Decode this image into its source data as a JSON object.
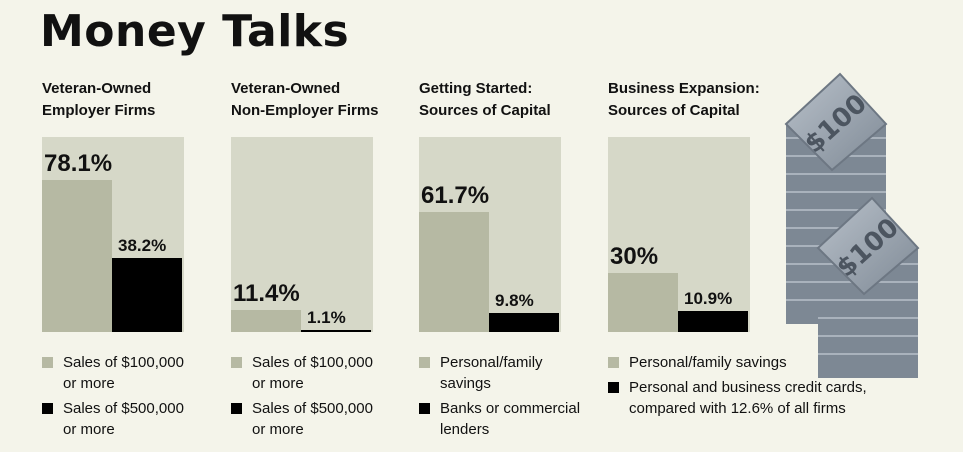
{
  "title": "Money Talks",
  "colors": {
    "background": "#f4f4ea",
    "panel": "#d6d8c8",
    "series_light": "#b6b9a3",
    "series_dark": "#000000",
    "bill": "#8f9aa6"
  },
  "illustration": {
    "icon": "dollar-bills-stack-icon",
    "bill_label": "$100"
  },
  "chart_data": [
    {
      "type": "bar",
      "title_lines": [
        "Veteran-Owned",
        "Employer Firms"
      ],
      "ylim": [
        0,
        100
      ],
      "series": [
        {
          "values": [
            78.1
          ],
          "label": "78.1%",
          "legend_lines": [
            "Sales of $100,000",
            "or more"
          ]
        },
        {
          "values": [
            38.2
          ],
          "label": "38.2%",
          "legend_lines": [
            "Sales of $500,000",
            "or more"
          ]
        }
      ]
    },
    {
      "type": "bar",
      "title_lines": [
        "Veteran-Owned",
        "Non-Employer Firms"
      ],
      "ylim": [
        0,
        100
      ],
      "series": [
        {
          "values": [
            11.4
          ],
          "label": "11.4%",
          "legend_lines": [
            "Sales of $100,000",
            "or more"
          ]
        },
        {
          "values": [
            1.1
          ],
          "label": "1.1%",
          "legend_lines": [
            "Sales of $500,000",
            "or more"
          ]
        }
      ]
    },
    {
      "type": "bar",
      "title_lines": [
        "Getting Started:",
        "Sources of Capital"
      ],
      "ylim": [
        0,
        100
      ],
      "series": [
        {
          "values": [
            61.7
          ],
          "label": "61.7%",
          "legend_lines": [
            "Personal/family",
            "savings"
          ]
        },
        {
          "values": [
            9.8
          ],
          "label": "9.8%",
          "legend_lines": [
            "Banks or commercial",
            "lenders"
          ]
        }
      ]
    },
    {
      "type": "bar",
      "title_lines": [
        "Business Expansion:",
        "Sources of Capital"
      ],
      "ylim": [
        0,
        100
      ],
      "series": [
        {
          "values": [
            30
          ],
          "label": "30%",
          "legend_lines": [
            "Personal/family savings"
          ]
        },
        {
          "values": [
            10.9
          ],
          "label": "10.9%",
          "legend_lines": [
            "Personal and business credit cards,",
            "compared with 12.6% of all firms"
          ]
        }
      ]
    }
  ]
}
